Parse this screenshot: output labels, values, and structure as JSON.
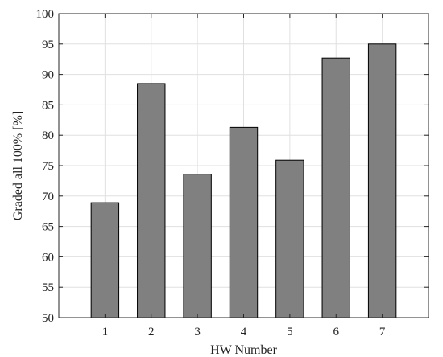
{
  "chart_data": {
    "type": "bar",
    "categories": [
      "1",
      "2",
      "3",
      "4",
      "5",
      "6",
      "7"
    ],
    "values": [
      68.9,
      88.5,
      73.6,
      81.3,
      75.9,
      92.7,
      95.0
    ],
    "title": "",
    "xlabel": "HW Number",
    "ylabel": "Graded all 100% [%]",
    "ylim": [
      50,
      100
    ],
    "yticks": [
      "50",
      "55",
      "60",
      "65",
      "70",
      "75",
      "80",
      "85",
      "90",
      "95",
      "100"
    ],
    "grid": true,
    "bar_color": "#808080",
    "bar_edge_color": "#000000"
  }
}
